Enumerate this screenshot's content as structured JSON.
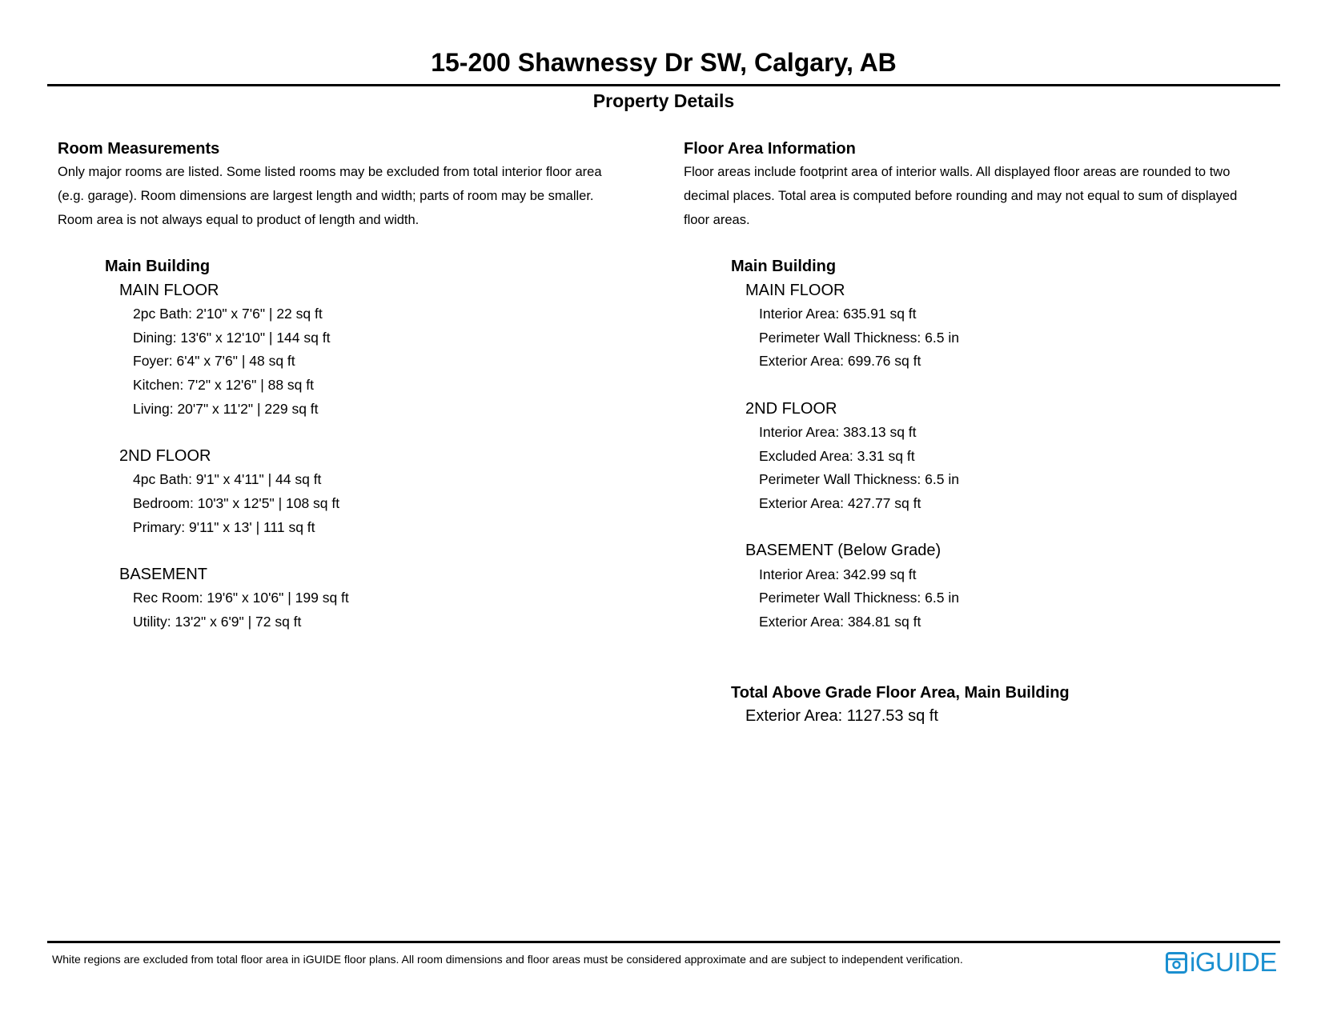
{
  "header": {
    "title": "15-200 Shawnessy Dr SW, Calgary, AB",
    "subtitle": "Property Details"
  },
  "room_measurements": {
    "heading": "Room Measurements",
    "lines": [
      "Only major rooms are listed. Some listed rooms may be excluded from total interior floor area",
      "(e.g. garage). Room dimensions are largest length and width; parts of room may be smaller.",
      "Room area is not always equal to product of length and width."
    ],
    "building": "Main Building",
    "floors": [
      {
        "name": "MAIN FLOOR",
        "items": [
          "2pc Bath: 2'10\" x 7'6\" | 22 sq ft",
          "Dining: 13'6\" x 12'10\" | 144 sq ft",
          "Foyer: 6'4\" x 7'6\" | 48 sq ft",
          "Kitchen: 7'2\" x 12'6\" | 88 sq ft",
          "Living: 20'7\" x 11'2\" | 229 sq ft"
        ]
      },
      {
        "name": "2ND FLOOR",
        "items": [
          "4pc Bath: 9'1\" x 4'11\" | 44 sq ft",
          "Bedroom: 10'3\" x 12'5\" | 108 sq ft",
          "Primary: 9'11\" x 13' | 111 sq ft"
        ]
      },
      {
        "name": "BASEMENT",
        "items": [
          "Rec Room: 19'6\" x 10'6\" | 199 sq ft",
          "Utility: 13'2\" x 6'9\" | 72 sq ft"
        ]
      }
    ]
  },
  "floor_area": {
    "heading": "Floor Area Information",
    "lines": [
      "Floor areas include footprint area of interior walls. All displayed floor areas are rounded to two",
      "decimal places. Total area is computed before rounding and may not equal to sum of displayed",
      "floor areas."
    ],
    "building": "Main Building",
    "floors": [
      {
        "name": "MAIN FLOOR",
        "items": [
          "Interior Area: 635.91 sq ft",
          "Perimeter Wall Thickness: 6.5 in",
          "Exterior Area: 699.76 sq ft"
        ]
      },
      {
        "name": "2ND FLOOR",
        "items": [
          "Interior Area: 383.13 sq ft",
          "Excluded Area: 3.31 sq ft",
          "Perimeter Wall Thickness: 6.5 in",
          "Exterior Area: 427.77 sq ft"
        ]
      },
      {
        "name": "BASEMENT (Below Grade)",
        "items": [
          "Interior Area: 342.99 sq ft",
          "Perimeter Wall Thickness: 6.5 in",
          "Exterior Area: 384.81 sq ft"
        ]
      }
    ],
    "total": {
      "heading": "Total Above Grade Floor Area, Main Building",
      "items": [
        "Exterior Area: 1127.53 sq ft"
      ]
    }
  },
  "footer": {
    "disclaimer": "White regions are excluded from total floor area in iGUIDE floor plans. All room dimensions and floor areas must be considered approximate and are subject to independent verification.",
    "logo_text": "iGUIDE",
    "logo_color": "#1a8fd0"
  }
}
